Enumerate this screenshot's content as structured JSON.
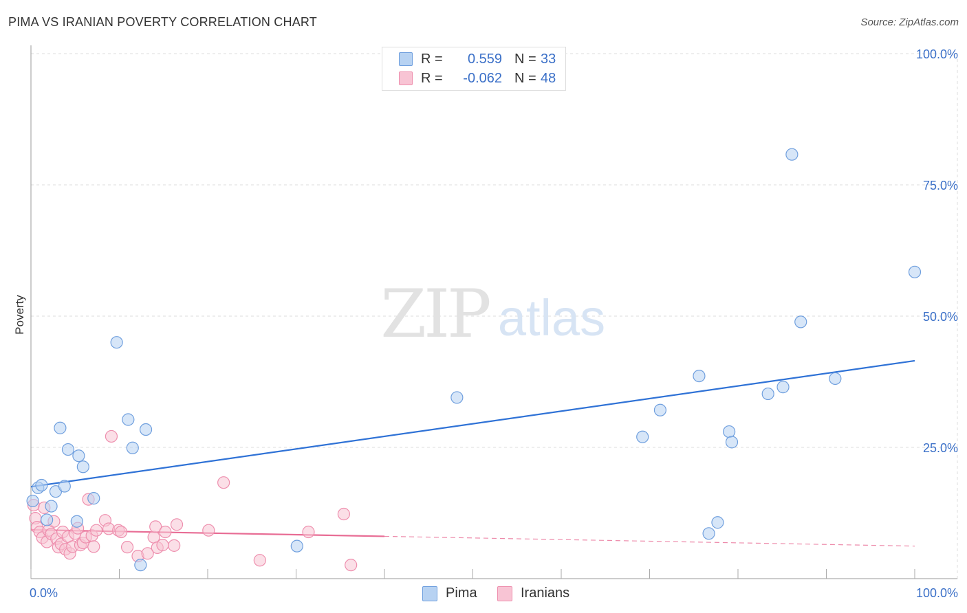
{
  "header": {
    "title": "PIMA VS IRANIAN POVERTY CORRELATION CHART",
    "source": "Source: ZipAtlas.com"
  },
  "watermark": {
    "zip": "ZIP",
    "atlas": "atlas"
  },
  "legend": {
    "rows": [
      {
        "r_label": "R =",
        "r_value": "0.559",
        "n_label": "N =",
        "n_value": "33"
      },
      {
        "r_label": "R =",
        "r_value": "-0.062",
        "n_label": "N =",
        "n_value": "48"
      }
    ]
  },
  "colors": {
    "pima_fill": "#b7d2f2",
    "pima_stroke": "#6f9fde",
    "pima_line": "#2f72d6",
    "iran_fill": "#f8c4d4",
    "iran_stroke": "#ee8fae",
    "iran_line": "#e86d95",
    "axis_text": "#3b70c8",
    "grid": "#dddddd"
  },
  "chart_data": {
    "type": "scatter",
    "title": "PIMA VS IRANIAN POVERTY CORRELATION CHART",
    "xlabel": "",
    "ylabel": "Poverty",
    "xlim": [
      0,
      100
    ],
    "ylim": [
      0,
      100
    ],
    "x_tick_labels": [
      "0.0%",
      "100.0%"
    ],
    "y_tick_labels": [
      "25.0%",
      "50.0%",
      "75.0%",
      "100.0%"
    ],
    "y_ticks": [
      25,
      50,
      75,
      100
    ],
    "grid": true,
    "legend_position": "bottom-center",
    "series": [
      {
        "name": "Pima",
        "r": 0.559,
        "n": 33,
        "trend": {
          "x_start": 0,
          "y_start": 17.5,
          "x_end": 100,
          "y_end": 41.5,
          "dashed_from": null
        },
        "points": [
          [
            0.2,
            14.8
          ],
          [
            0.8,
            17.3
          ],
          [
            1.2,
            17.8
          ],
          [
            1.8,
            11.2
          ],
          [
            2.3,
            13.8
          ],
          [
            2.8,
            16.6
          ],
          [
            3.3,
            28.7
          ],
          [
            3.8,
            17.6
          ],
          [
            4.2,
            24.6
          ],
          [
            5.2,
            10.9
          ],
          [
            5.4,
            23.4
          ],
          [
            5.9,
            21.3
          ],
          [
            7.1,
            15.3
          ],
          [
            9.7,
            45.0
          ],
          [
            11.0,
            30.3
          ],
          [
            11.5,
            24.9
          ],
          [
            12.4,
            2.6
          ],
          [
            13.0,
            28.4
          ],
          [
            30.1,
            6.2
          ],
          [
            48.2,
            34.5
          ],
          [
            69.2,
            27.0
          ],
          [
            71.2,
            32.1
          ],
          [
            75.6,
            38.6
          ],
          [
            76.7,
            8.6
          ],
          [
            77.7,
            10.7
          ],
          [
            79.0,
            28.0
          ],
          [
            79.3,
            26.0
          ],
          [
            83.4,
            35.2
          ],
          [
            85.1,
            36.5
          ],
          [
            86.1,
            80.8
          ],
          [
            87.1,
            48.9
          ],
          [
            91.0,
            38.1
          ],
          [
            100.0,
            58.4
          ]
        ]
      },
      {
        "name": "Iranians",
        "r": -0.062,
        "n": 48,
        "trend": {
          "x_start": 0,
          "y_start": 9.3,
          "x_end": 100,
          "y_end": 6.2,
          "dashed_from": 40
        },
        "points": [
          [
            0.3,
            14.0
          ],
          [
            0.5,
            11.5
          ],
          [
            0.7,
            9.8
          ],
          [
            1.0,
            8.9
          ],
          [
            1.3,
            7.8
          ],
          [
            1.5,
            13.5
          ],
          [
            1.8,
            7.0
          ],
          [
            2.0,
            9.2
          ],
          [
            2.3,
            8.5
          ],
          [
            2.6,
            10.9
          ],
          [
            2.9,
            7.6
          ],
          [
            3.1,
            6.0
          ],
          [
            3.4,
            6.6
          ],
          [
            3.6,
            8.9
          ],
          [
            3.9,
            5.6
          ],
          [
            4.2,
            8.0
          ],
          [
            4.4,
            4.8
          ],
          [
            4.7,
            6.1
          ],
          [
            5.0,
            8.6
          ],
          [
            5.3,
            9.6
          ],
          [
            5.6,
            6.4
          ],
          [
            5.9,
            6.8
          ],
          [
            6.2,
            7.9
          ],
          [
            6.5,
            15.1
          ],
          [
            6.9,
            8.2
          ],
          [
            7.1,
            6.1
          ],
          [
            7.4,
            9.2
          ],
          [
            8.4,
            11.1
          ],
          [
            8.8,
            9.5
          ],
          [
            9.1,
            27.1
          ],
          [
            9.9,
            9.2
          ],
          [
            10.2,
            8.9
          ],
          [
            10.9,
            6.0
          ],
          [
            12.1,
            4.3
          ],
          [
            13.2,
            4.8
          ],
          [
            13.9,
            7.9
          ],
          [
            14.1,
            9.9
          ],
          [
            14.3,
            5.9
          ],
          [
            14.9,
            6.4
          ],
          [
            15.2,
            8.9
          ],
          [
            16.2,
            6.3
          ],
          [
            16.5,
            10.3
          ],
          [
            20.1,
            9.2
          ],
          [
            21.8,
            18.3
          ],
          [
            25.9,
            3.5
          ],
          [
            31.4,
            8.9
          ],
          [
            35.4,
            12.3
          ],
          [
            36.2,
            2.6
          ]
        ]
      }
    ]
  }
}
